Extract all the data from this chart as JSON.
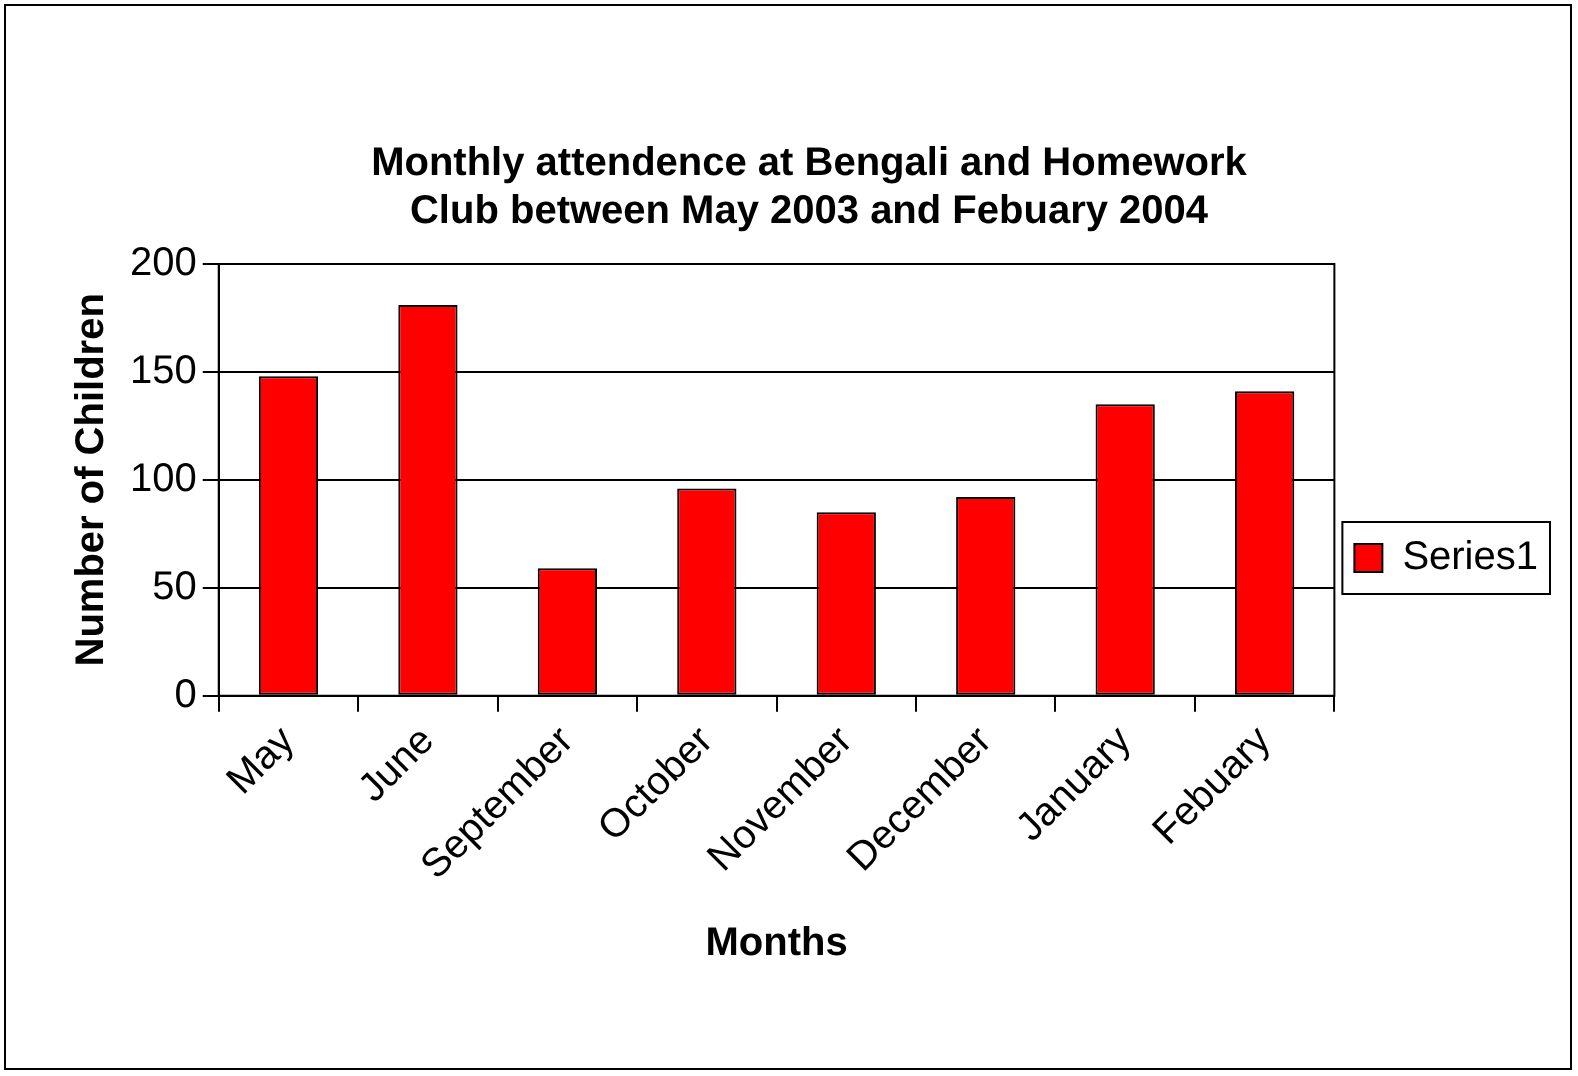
{
  "chart_data": {
    "type": "bar",
    "title": "Monthly attendence at Bengali and Homework Club between May 2003 and Febuary 2004",
    "xlabel": "Months",
    "ylabel": "Number of Children",
    "categories": [
      "May",
      "June",
      "September",
      "October",
      "November",
      "December",
      "January",
      "Febuary"
    ],
    "series": [
      {
        "name": "Series1",
        "color": "#ff0000",
        "values": [
          148,
          181,
          59,
          96,
          85,
          92,
          135,
          141
        ]
      }
    ],
    "ylim": [
      0,
      200
    ],
    "yticks": [
      0,
      50,
      100,
      150,
      200
    ],
    "grid": "y",
    "legend": "right"
  }
}
